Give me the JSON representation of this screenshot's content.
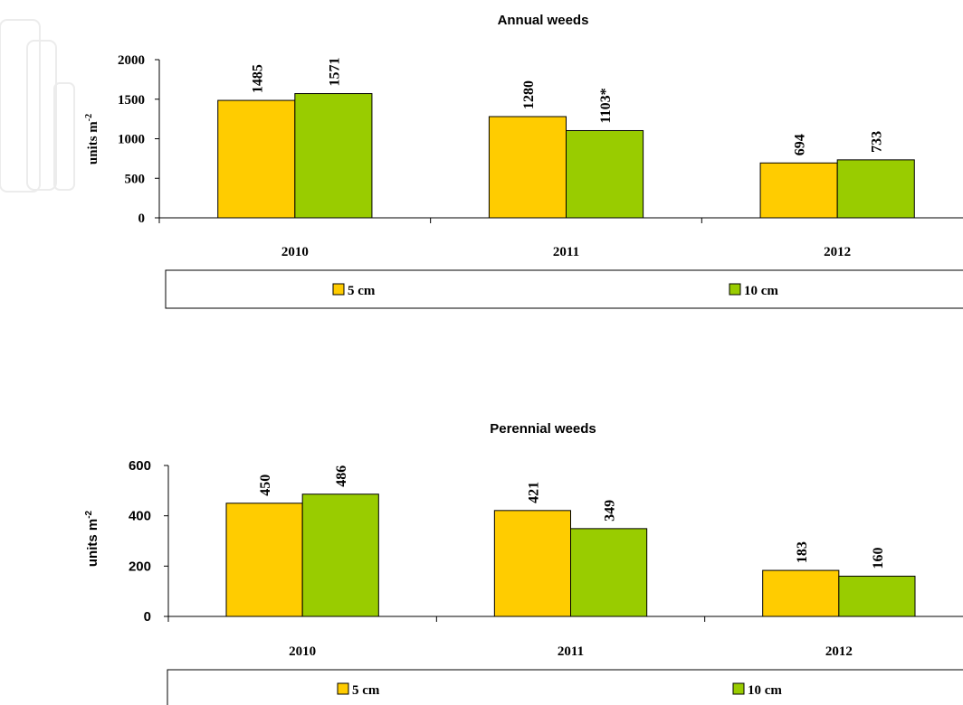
{
  "chart_data": [
    {
      "type": "bar",
      "title": "Annual weeds",
      "ylabel_text": "units m",
      "ylabel_sup": "-2",
      "categories": [
        "2010",
        "2011",
        "2012"
      ],
      "ylim": [
        0,
        2000
      ],
      "yticks": [
        "0",
        "500",
        "1000",
        "1500",
        "2000"
      ],
      "series": [
        {
          "name": "5 cm",
          "color": "#ffcc00",
          "values": [
            1485,
            1280,
            694
          ],
          "labels": [
            "1485",
            "1280",
            "694"
          ]
        },
        {
          "name": "10 cm",
          "color": "#99cc00",
          "values": [
            1571,
            1103,
            733
          ],
          "labels": [
            "1571",
            "1103*",
            "733"
          ]
        }
      ],
      "legend": "bottom",
      "grid": false
    },
    {
      "type": "bar",
      "title": "Perennial weeds",
      "ylabel_text": "units m",
      "ylabel_sup": "-2",
      "categories": [
        "2010",
        "2011",
        "2012"
      ],
      "ylim": [
        0,
        600
      ],
      "yticks": [
        "0",
        "200",
        "400",
        "600"
      ],
      "series": [
        {
          "name": "5 cm",
          "color": "#ffcc00",
          "values": [
            450,
            421,
            183
          ],
          "labels": [
            "450",
            "421",
            "183"
          ]
        },
        {
          "name": "10 cm",
          "color": "#99cc00",
          "values": [
            486,
            349,
            160
          ],
          "labels": [
            "486",
            "349",
            "160"
          ]
        }
      ],
      "legend": "bottom",
      "grid": false
    }
  ]
}
